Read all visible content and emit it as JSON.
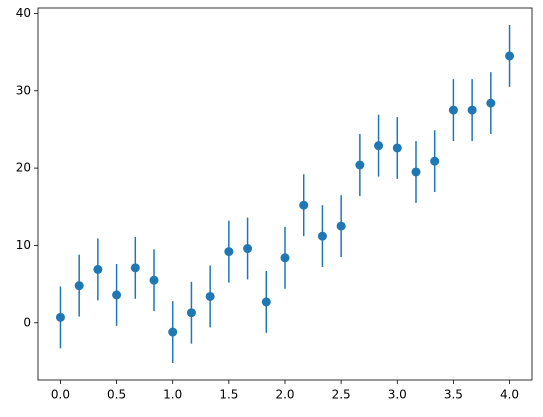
{
  "chart_data": {
    "type": "errorbar",
    "x": [
      0,
      0.1667,
      0.3333,
      0.5,
      0.6667,
      0.8333,
      1,
      1.1667,
      1.3333,
      1.5,
      1.6667,
      1.8333,
      2,
      2.1667,
      2.3333,
      2.5,
      2.6667,
      2.8333,
      3,
      3.1667,
      3.3333,
      3.5,
      3.6667,
      3.8333,
      4
    ],
    "series": [
      {
        "color": "#1f77b4",
        "values": [
          0.7,
          4.8,
          6.9,
          3.6,
          7.1,
          5.5,
          -1.2,
          1.3,
          3.4,
          9.2,
          9.6,
          2.7,
          8.4,
          15.2,
          11.2,
          12.5,
          20.4,
          22.9,
          22.6,
          19.5,
          20.9,
          27.5,
          27.5,
          28.4,
          34.5
        ],
        "errors": [
          4,
          4,
          4,
          4,
          4,
          4,
          4,
          4,
          4,
          4,
          4,
          4,
          4,
          4,
          4,
          4,
          4,
          4,
          4,
          4,
          4,
          4,
          4,
          4,
          4
        ]
      }
    ],
    "xlim": [
      -0.2,
      4.2
    ],
    "ylim": [
      -7.4,
      40.7
    ],
    "xticks": [
      {
        "value": 0,
        "label": "0.0"
      },
      {
        "value": 0.5,
        "label": "0.5"
      },
      {
        "value": 1,
        "label": "1.0"
      },
      {
        "value": 1.5,
        "label": "1.5"
      },
      {
        "value": 2,
        "label": "2.0"
      },
      {
        "value": 2.5,
        "label": "2.5"
      },
      {
        "value": 3,
        "label": "3.0"
      },
      {
        "value": 3.5,
        "label": "3.5"
      },
      {
        "value": 4,
        "label": "4.0"
      }
    ],
    "yticks": [
      0,
      10,
      20,
      30,
      40
    ]
  }
}
